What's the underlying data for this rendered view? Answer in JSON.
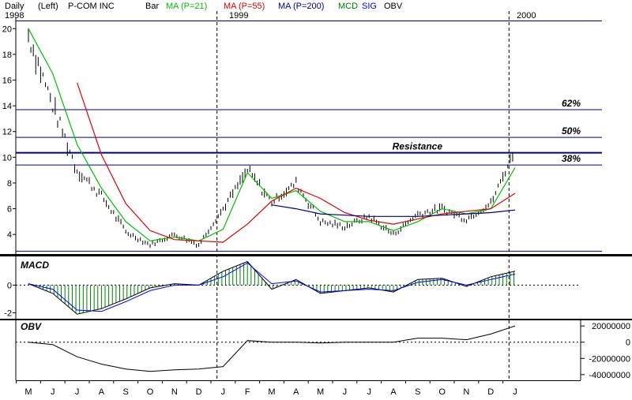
{
  "header": {
    "period": "Daily",
    "scale": "(Left)",
    "symbol": "P-COM INC",
    "style": "Bar",
    "year_labels": [
      "1998",
      "1999",
      "2000"
    ],
    "legend": [
      {
        "label": "MA (P=21)",
        "color": "#00c000"
      },
      {
        "label": "MA (P=55)",
        "color": "#e00000"
      },
      {
        "label": "MA (P=200)",
        "color": "#000080"
      },
      {
        "label": "MCD",
        "color": "#008000"
      },
      {
        "label": "SIG",
        "color": "#0000ff"
      },
      {
        "label": "OBV",
        "color": "#000000"
      }
    ]
  },
  "chart_data": [
    {
      "type": "line",
      "panel": "price",
      "x": [
        "May 1998",
        "Jun 1998",
        "Jul 1998",
        "Aug 1998",
        "Sep 1998",
        "Oct 1998",
        "Nov 1998",
        "Dec 1998",
        "Jan 1999",
        "Feb 1999",
        "Mar 1999",
        "Apr 1999",
        "May 1999",
        "Jun 1999",
        "Jul 1999",
        "Aug 1999",
        "Sep 1999",
        "Oct 1999",
        "Nov 1999",
        "Dec 1999",
        "Jan 2000"
      ],
      "series": [
        {
          "name": "Price",
          "values": [
            19.5,
            14.0,
            9.0,
            7.0,
            4.2,
            3.2,
            4.0,
            3.2,
            6.0,
            9.0,
            6.5,
            8.0,
            5.0,
            4.6,
            5.4,
            4.0,
            5.6,
            6.0,
            5.2,
            6.4,
            10.6
          ]
        },
        {
          "name": "MA (P=21)",
          "color": "#00c000",
          "values": [
            20.0,
            16.5,
            11.0,
            7.6,
            5.0,
            3.5,
            3.8,
            3.5,
            4.4,
            8.8,
            6.8,
            7.4,
            5.8,
            5.0,
            5.0,
            4.3,
            5.0,
            6.0,
            5.6,
            6.0,
            9.2
          ]
        },
        {
          "name": "MA (P=55)",
          "color": "#e00000",
          "values": [
            null,
            null,
            15.8,
            10.2,
            6.4,
            4.3,
            3.6,
            3.5,
            3.4,
            4.8,
            6.6,
            7.6,
            6.8,
            5.7,
            5.1,
            4.8,
            5.2,
            5.6,
            5.8,
            6.0,
            7.2
          ]
        },
        {
          "name": "MA (P=200)",
          "color": "#000080",
          "values": [
            null,
            null,
            null,
            null,
            null,
            null,
            null,
            null,
            null,
            null,
            6.3,
            6.0,
            5.6,
            5.5,
            5.4,
            5.4,
            5.4,
            5.5,
            5.6,
            5.7,
            5.9
          ]
        }
      ],
      "ylim": [
        2.6,
        21
      ],
      "yticks": [
        2,
        4,
        6,
        8,
        10,
        12,
        14,
        16,
        18,
        20
      ],
      "ytick_labels": [
        "2",
        "4",
        "6",
        "8",
        "10",
        "12",
        "14",
        "16",
        "18",
        "20"
      ],
      "horizontal_lines": [
        {
          "value": 20.6
        },
        {
          "value": 13.7,
          "label": "62%"
        },
        {
          "value": 11.55,
          "label": "50%"
        },
        {
          "value": 10.35,
          "label": "Resistance"
        },
        {
          "value": 9.4,
          "label": "38%"
        },
        {
          "value": 2.7
        }
      ],
      "vertical_markers": [
        "Jan 1999",
        "Jan 2000"
      ]
    },
    {
      "type": "line",
      "panel": "macd",
      "title": "MACD",
      "x": [
        "May 1998",
        "Jun 1998",
        "Jul 1998",
        "Aug 1998",
        "Sep 1998",
        "Oct 1998",
        "Nov 1998",
        "Dec 1998",
        "Jan 1999",
        "Feb 1999",
        "Mar 1999",
        "Apr 1999",
        "May 1999",
        "Jun 1999",
        "Jul 1999",
        "Aug 1999",
        "Sep 1999",
        "Oct 1999",
        "Nov 1999",
        "Dec 1999",
        "Jan 2000"
      ],
      "series": [
        {
          "name": "MCD",
          "color": "#008000",
          "values": [
            0.1,
            -0.6,
            -2.1,
            -1.7,
            -1.0,
            -0.2,
            0.1,
            0.0,
            1.0,
            1.7,
            -0.3,
            0.4,
            -0.6,
            -0.4,
            -0.2,
            -0.5,
            0.4,
            0.5,
            -0.1,
            0.6,
            1.0
          ]
        },
        {
          "name": "SIG",
          "color": "#0000ff",
          "values": [
            0.1,
            -0.3,
            -1.8,
            -1.9,
            -1.2,
            -0.4,
            0.0,
            0.0,
            0.6,
            1.6,
            0.1,
            0.3,
            -0.5,
            -0.4,
            -0.3,
            -0.4,
            0.2,
            0.4,
            0.0,
            0.4,
            0.8
          ]
        }
      ],
      "ylim": [
        -2.2,
        1.9
      ],
      "yticks": [
        -2,
        0
      ]
    },
    {
      "type": "line",
      "panel": "obv",
      "title": "OBV",
      "x": [
        "May 1998",
        "Jun 1998",
        "Jul 1998",
        "Aug 1998",
        "Sep 1998",
        "Oct 1998",
        "Nov 1998",
        "Dec 1998",
        "Jan 1999",
        "Feb 1999",
        "Mar 1999",
        "Apr 1999",
        "May 1999",
        "Jun 1999",
        "Jul 1999",
        "Aug 1999",
        "Sep 1999",
        "Oct 1999",
        "Nov 1999",
        "Dec 1999",
        "Jan 2000"
      ],
      "series": [
        {
          "name": "OBV",
          "color": "#000000",
          "values": [
            0,
            -3000000,
            -18000000,
            -27000000,
            -33000000,
            -36000000,
            -34000000,
            -33000000,
            -30000000,
            2000000,
            0,
            0,
            -1000000,
            0,
            0,
            0,
            5000000,
            5000000,
            3000000,
            10000000,
            20000000
          ]
        }
      ],
      "ylim": [
        -45000000,
        25000000
      ],
      "yticks": [
        20000000,
        0,
        -20000000,
        -40000000
      ],
      "ytick_labels": [
        "20000000",
        "0",
        "-20000000",
        "-40000000"
      ]
    }
  ],
  "x_axis": {
    "month_labels": [
      "M",
      "J",
      "J",
      "A",
      "S",
      "O",
      "N",
      "D",
      "J",
      "F",
      "M",
      "A",
      "M",
      "J",
      "J",
      "A",
      "S",
      "O",
      "N",
      "D",
      "J"
    ]
  }
}
